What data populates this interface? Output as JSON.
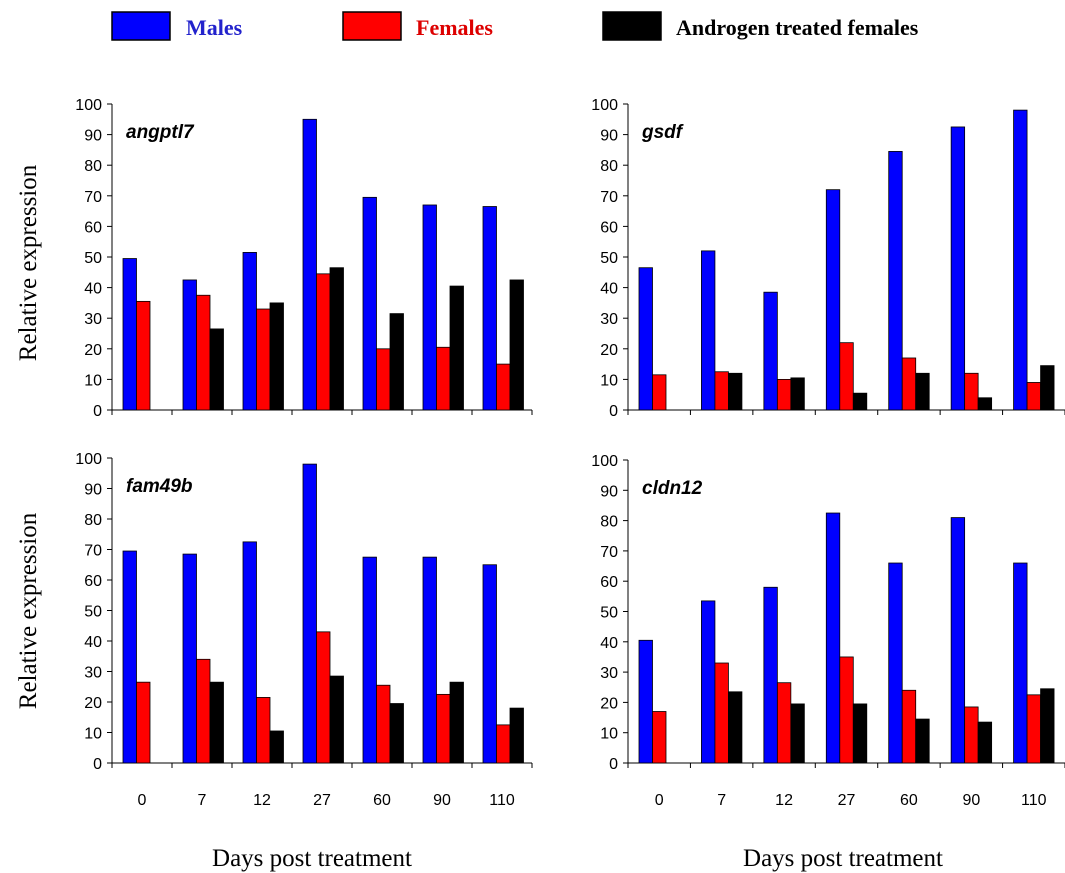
{
  "legend": [
    {
      "label": "Males",
      "fill": "#0000ff",
      "text_color": "#2222cc"
    },
    {
      "label": "Females",
      "fill": "#ff0000",
      "text_color": "#dd0000"
    },
    {
      "label": "Androgen treated females",
      "fill": "#000000",
      "text_color": "#000000"
    }
  ],
  "axis_titles": {
    "y": "Relative expression",
    "x": "Days post treatment"
  },
  "chart_data": [
    {
      "type": "bar",
      "title": "angptl7",
      "categories": [
        "0",
        "7",
        "12",
        "27",
        "60",
        "90",
        "110"
      ],
      "ylim": [
        0,
        100
      ],
      "yticks": [
        0,
        10,
        20,
        30,
        40,
        50,
        60,
        70,
        80,
        90,
        100
      ],
      "series": [
        {
          "name": "Males",
          "values": [
            49.5,
            42.5,
            51.5,
            95,
            69.5,
            67,
            66.5
          ]
        },
        {
          "name": "Females",
          "values": [
            35.5,
            37.5,
            33,
            44.5,
            20,
            20.5,
            15
          ]
        },
        {
          "name": "Androgen treated females",
          "values": [
            null,
            26.5,
            35,
            46.5,
            31.5,
            40.5,
            42.5
          ]
        }
      ]
    },
    {
      "type": "bar",
      "title": "gsdf",
      "categories": [
        "0",
        "7",
        "12",
        "27",
        "60",
        "90",
        "110"
      ],
      "ylim": [
        0,
        100
      ],
      "yticks": [
        0,
        10,
        20,
        30,
        40,
        50,
        60,
        70,
        80,
        90,
        100
      ],
      "series": [
        {
          "name": "Males",
          "values": [
            46.5,
            52,
            38.5,
            72,
            84.5,
            92.5,
            98
          ]
        },
        {
          "name": "Females",
          "values": [
            11.5,
            12.5,
            10,
            22,
            17,
            12,
            9
          ]
        },
        {
          "name": "Androgen treated females",
          "values": [
            null,
            12,
            10.5,
            5.5,
            12,
            4,
            14.5
          ]
        }
      ]
    },
    {
      "type": "bar",
      "title": "fam49b",
      "categories": [
        "0",
        "7",
        "12",
        "27",
        "60",
        "90",
        "110"
      ],
      "ylim": [
        0,
        100
      ],
      "yticks": [
        0,
        10,
        20,
        30,
        40,
        50,
        60,
        70,
        80,
        90,
        100
      ],
      "series": [
        {
          "name": "Males",
          "values": [
            69.5,
            68.5,
            72.5,
            98,
            67.5,
            67.5,
            65
          ]
        },
        {
          "name": "Females",
          "values": [
            26.5,
            34,
            21.5,
            43,
            25.5,
            22.5,
            12.5
          ]
        },
        {
          "name": "Androgen treated females",
          "values": [
            null,
            26.5,
            10.5,
            28.5,
            19.5,
            26.5,
            18
          ]
        }
      ]
    },
    {
      "type": "bar",
      "title": "cldn12",
      "categories": [
        "0",
        "7",
        "12",
        "27",
        "60",
        "90",
        "110"
      ],
      "ylim": [
        0,
        100
      ],
      "yticks": [
        0,
        10,
        20,
        30,
        40,
        50,
        60,
        70,
        80,
        90,
        100
      ],
      "series": [
        {
          "name": "Males",
          "values": [
            40.5,
            53.5,
            58,
            82.5,
            66,
            81,
            66
          ]
        },
        {
          "name": "Females",
          "values": [
            17,
            33,
            26.5,
            35,
            24,
            18.5,
            22.5
          ]
        },
        {
          "name": "Androgen treated females",
          "values": [
            null,
            23.5,
            19.5,
            19.5,
            14.5,
            13.5,
            24.5
          ]
        }
      ]
    }
  ]
}
